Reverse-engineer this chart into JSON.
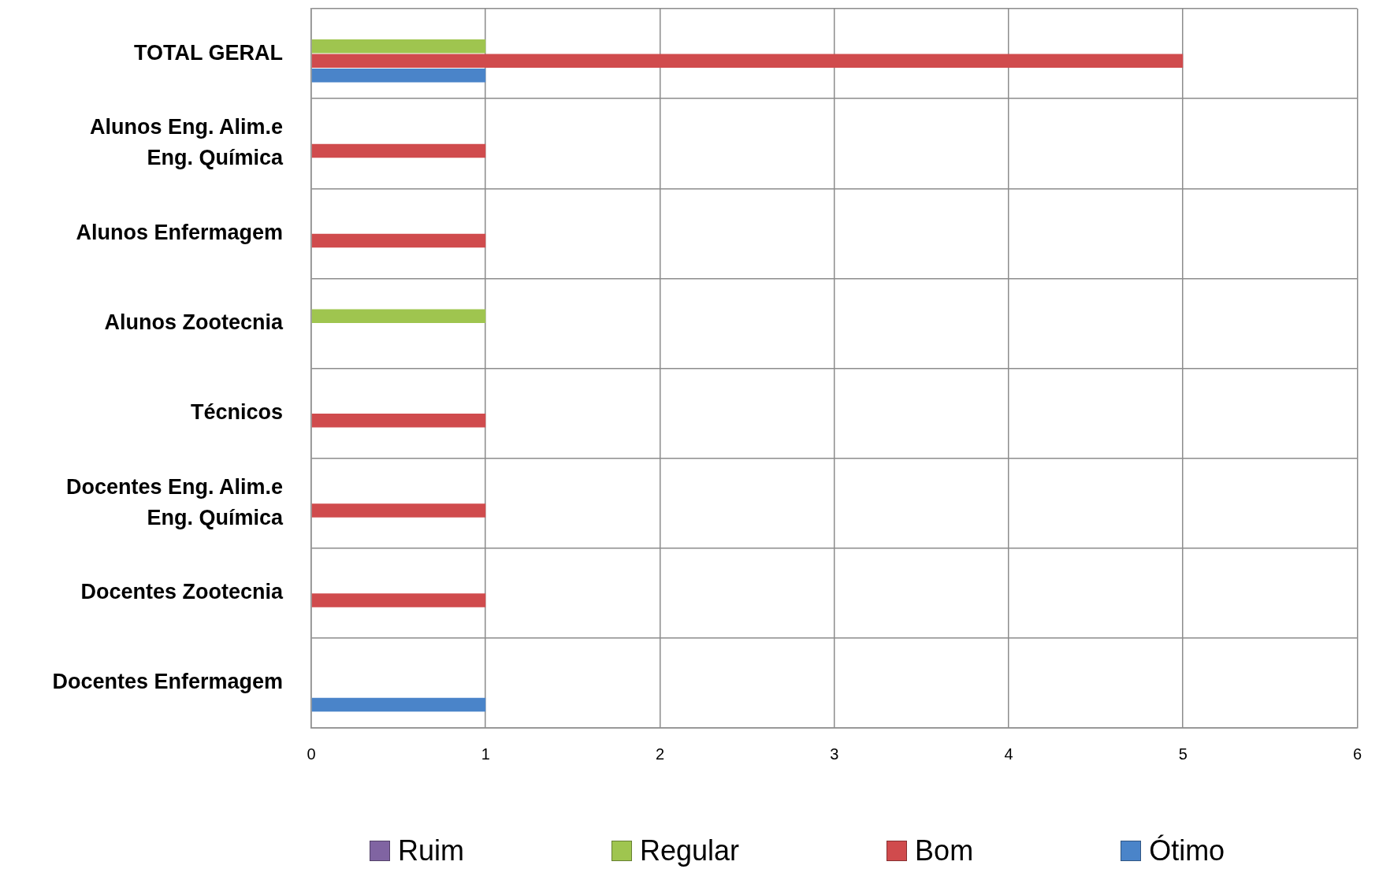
{
  "chart_data": {
    "type": "bar",
    "orientation": "horizontal",
    "categories": [
      "TOTAL GERAL",
      "Alunos Eng. Alim.e Eng. Química",
      "Alunos Enfermagem",
      "Alunos Zootecnia",
      "Técnicos",
      "Docentes Eng. Alim.e Eng. Química",
      "Docentes Zootecnia",
      "Docentes Enfermagem"
    ],
    "series": [
      {
        "name": "Ruim",
        "color": "#8064a2",
        "values": [
          0,
          0,
          0,
          0,
          0,
          0,
          0,
          0
        ]
      },
      {
        "name": "Regular",
        "color": "#9fc54f",
        "values": [
          1,
          0,
          0,
          1,
          0,
          0,
          0,
          0
        ]
      },
      {
        "name": "Bom",
        "color": "#d04b4d",
        "values": [
          5,
          1,
          1,
          0,
          1,
          1,
          1,
          0
        ]
      },
      {
        "name": "Ótimo",
        "color": "#4a84c9",
        "values": [
          1,
          0,
          0,
          0,
          0,
          0,
          0,
          1
        ]
      }
    ],
    "xlim": [
      0,
      6
    ],
    "xticks": [
      0,
      1,
      2,
      3,
      4,
      5,
      6
    ],
    "grid": true,
    "legend": "bottom"
  }
}
